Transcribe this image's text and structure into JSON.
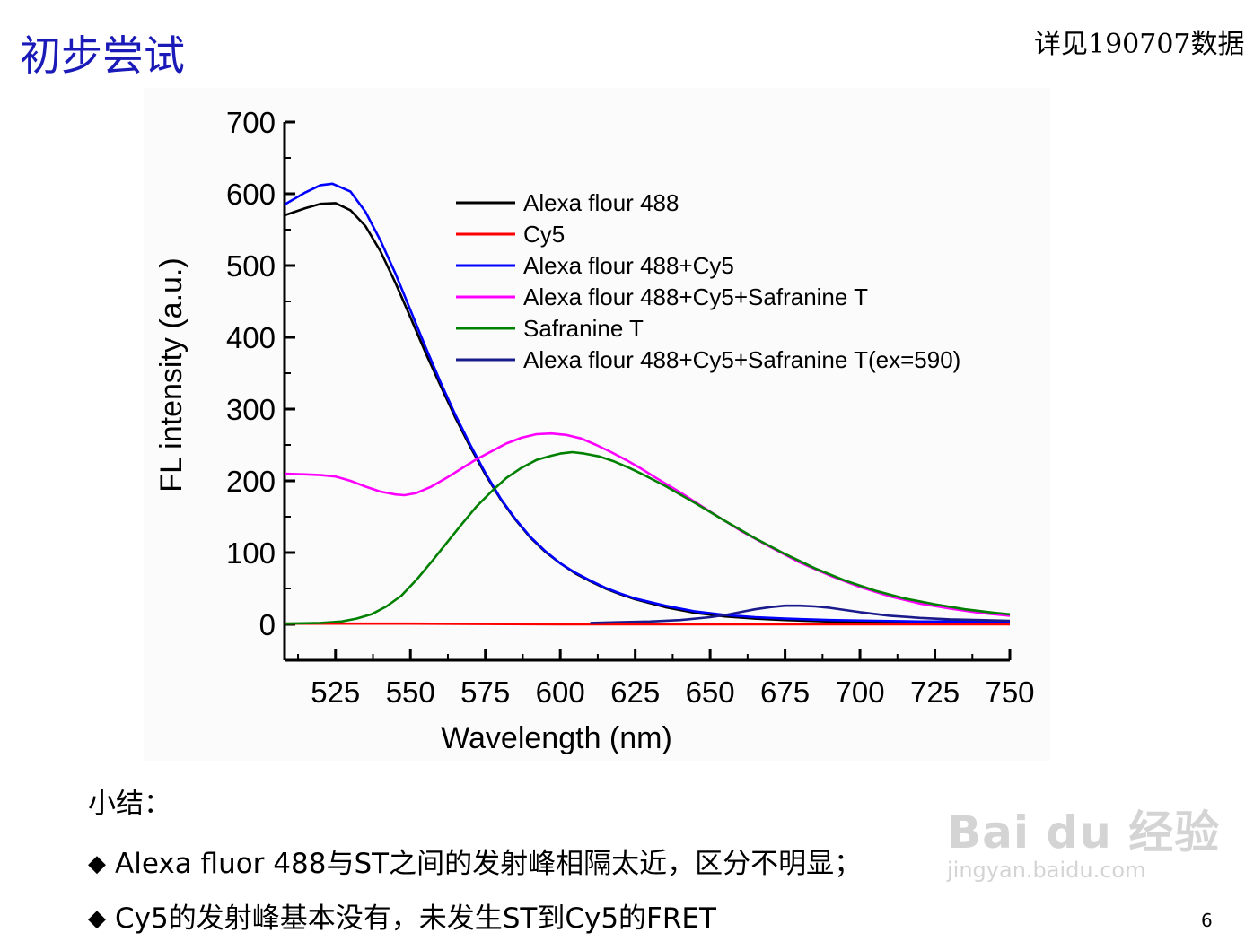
{
  "slide": {
    "title": "初步尝试",
    "ref_note": "详见190707数据",
    "page_number": "6"
  },
  "summary": {
    "heading": "小结：",
    "bullets": [
      "Alexa fluor 488与ST之间的发射峰相隔太近，区分不明显；",
      "Cy5的发射峰基本没有，未发生ST到Cy5的FRET"
    ]
  },
  "watermark": {
    "logo": "Bai du 经验",
    "url": "jingyan.baidu.com"
  },
  "chart_data": {
    "type": "line",
    "xlabel": "Wavelength (nm)",
    "ylabel": "FL intensity (a.u.)",
    "xlim": [
      508,
      750
    ],
    "ylim": [
      -50,
      700
    ],
    "x_ticks": [
      525,
      550,
      575,
      600,
      625,
      650,
      675,
      700,
      725,
      750
    ],
    "y_ticks": [
      0,
      100,
      200,
      300,
      400,
      500,
      600,
      700
    ],
    "legend_position": "top-right",
    "grid": false,
    "series": [
      {
        "name": "Alexa flour 488",
        "color": "#000000",
        "points": [
          [
            508,
            570
          ],
          [
            515,
            580
          ],
          [
            520,
            586
          ],
          [
            525,
            587
          ],
          [
            530,
            577
          ],
          [
            535,
            555
          ],
          [
            540,
            520
          ],
          [
            545,
            476
          ],
          [
            550,
            428
          ],
          [
            555,
            379
          ],
          [
            560,
            333
          ],
          [
            565,
            288
          ],
          [
            570,
            247
          ],
          [
            575,
            209
          ],
          [
            580,
            175
          ],
          [
            585,
            146
          ],
          [
            590,
            121
          ],
          [
            595,
            101
          ],
          [
            600,
            85
          ],
          [
            605,
            71
          ],
          [
            610,
            60
          ],
          [
            615,
            50
          ],
          [
            620,
            42
          ],
          [
            625,
            35
          ],
          [
            635,
            24
          ],
          [
            645,
            16
          ],
          [
            655,
            11
          ],
          [
            665,
            8
          ],
          [
            675,
            6
          ],
          [
            690,
            4
          ],
          [
            705,
            3
          ],
          [
            720,
            2
          ],
          [
            735,
            1
          ],
          [
            750,
            1
          ]
        ]
      },
      {
        "name": "Cy5",
        "color": "#ff0000",
        "points": [
          [
            508,
            1
          ],
          [
            550,
            1
          ],
          [
            600,
            0
          ],
          [
            650,
            0
          ],
          [
            700,
            0
          ],
          [
            750,
            0
          ]
        ]
      },
      {
        "name": "Alexa flour 488+Cy5",
        "color": "#0000ff",
        "points": [
          [
            508,
            585
          ],
          [
            515,
            602
          ],
          [
            520,
            612
          ],
          [
            524,
            614
          ],
          [
            530,
            603
          ],
          [
            535,
            575
          ],
          [
            540,
            535
          ],
          [
            545,
            489
          ],
          [
            550,
            438
          ],
          [
            555,
            387
          ],
          [
            560,
            338
          ],
          [
            565,
            292
          ],
          [
            570,
            250
          ],
          [
            575,
            211
          ],
          [
            580,
            176
          ],
          [
            585,
            147
          ],
          [
            590,
            122
          ],
          [
            595,
            102
          ],
          [
            600,
            85
          ],
          [
            605,
            72
          ],
          [
            610,
            61
          ],
          [
            615,
            51
          ],
          [
            620,
            43
          ],
          [
            625,
            36
          ],
          [
            635,
            26
          ],
          [
            645,
            18
          ],
          [
            655,
            13
          ],
          [
            665,
            10
          ],
          [
            675,
            8
          ],
          [
            690,
            6
          ],
          [
            705,
            5
          ],
          [
            720,
            4
          ],
          [
            735,
            4
          ],
          [
            750,
            3
          ]
        ]
      },
      {
        "name": "Alexa flour 488+Cy5+Safranine T",
        "color": "#ff00ff",
        "points": [
          [
            508,
            210
          ],
          [
            515,
            209
          ],
          [
            520,
            208
          ],
          [
            525,
            206
          ],
          [
            530,
            200
          ],
          [
            535,
            192
          ],
          [
            540,
            185
          ],
          [
            545,
            181
          ],
          [
            548,
            180
          ],
          [
            552,
            183
          ],
          [
            557,
            192
          ],
          [
            562,
            204
          ],
          [
            567,
            217
          ],
          [
            572,
            230
          ],
          [
            577,
            241
          ],
          [
            582,
            252
          ],
          [
            587,
            260
          ],
          [
            592,
            265
          ],
          [
            597,
            266
          ],
          [
            602,
            264
          ],
          [
            607,
            259
          ],
          [
            612,
            250
          ],
          [
            617,
            240
          ],
          [
            622,
            229
          ],
          [
            627,
            217
          ],
          [
            632,
            204
          ],
          [
            640,
            184
          ],
          [
            650,
            157
          ],
          [
            660,
            131
          ],
          [
            670,
            108
          ],
          [
            680,
            86
          ],
          [
            690,
            68
          ],
          [
            700,
            52
          ],
          [
            710,
            39
          ],
          [
            720,
            29
          ],
          [
            730,
            22
          ],
          [
            740,
            16
          ],
          [
            750,
            12
          ]
        ]
      },
      {
        "name": "Safranine T",
        "color": "#008000",
        "points": [
          [
            508,
            1
          ],
          [
            520,
            2
          ],
          [
            527,
            4
          ],
          [
            532,
            8
          ],
          [
            537,
            14
          ],
          [
            542,
            25
          ],
          [
            547,
            40
          ],
          [
            552,
            62
          ],
          [
            557,
            87
          ],
          [
            562,
            113
          ],
          [
            567,
            139
          ],
          [
            572,
            164
          ],
          [
            577,
            185
          ],
          [
            582,
            204
          ],
          [
            587,
            218
          ],
          [
            592,
            229
          ],
          [
            597,
            235
          ],
          [
            600,
            238
          ],
          [
            604,
            240
          ],
          [
            608,
            238
          ],
          [
            613,
            234
          ],
          [
            618,
            227
          ],
          [
            623,
            218
          ],
          [
            628,
            208
          ],
          [
            635,
            193
          ],
          [
            645,
            169
          ],
          [
            655,
            144
          ],
          [
            665,
            120
          ],
          [
            675,
            98
          ],
          [
            685,
            78
          ],
          [
            695,
            61
          ],
          [
            705,
            47
          ],
          [
            715,
            36
          ],
          [
            725,
            28
          ],
          [
            735,
            21
          ],
          [
            745,
            16
          ],
          [
            750,
            14
          ]
        ]
      },
      {
        "name": "Alexa flour 488+Cy5+Safranine T(ex=590)",
        "color": "#1a1a8c",
        "points": [
          [
            610,
            2
          ],
          [
            620,
            3
          ],
          [
            630,
            4
          ],
          [
            640,
            6
          ],
          [
            650,
            10
          ],
          [
            655,
            13
          ],
          [
            660,
            17
          ],
          [
            665,
            21
          ],
          [
            670,
            24
          ],
          [
            675,
            26
          ],
          [
            680,
            26
          ],
          [
            685,
            25
          ],
          [
            690,
            23
          ],
          [
            695,
            20
          ],
          [
            700,
            17
          ],
          [
            710,
            12
          ],
          [
            720,
            9
          ],
          [
            730,
            7
          ],
          [
            740,
            6
          ],
          [
            750,
            5
          ]
        ]
      }
    ]
  }
}
